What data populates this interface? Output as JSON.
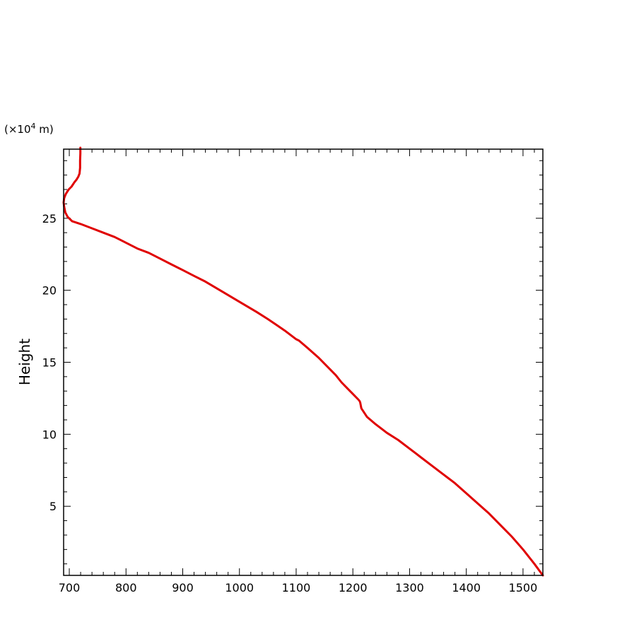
{
  "chart_data": {
    "type": "line",
    "title": "",
    "xlabel": "",
    "ylabel": "Height",
    "y_unit_prefix": "(×10",
    "y_unit_exp": "4",
    "y_unit_suffix": " m)",
    "xlim": [
      690,
      1535
    ],
    "ylim": [
      0.2,
      29.8
    ],
    "xticks": [
      700,
      800,
      900,
      1000,
      1100,
      1200,
      1300,
      1400,
      1500
    ],
    "yticks": [
      5,
      10,
      15,
      20,
      25
    ],
    "grid": false,
    "legend": "none",
    "line_color": "#e00000",
    "series": [
      {
        "x": [
          1535,
          1520,
          1500,
          1480,
          1460,
          1440,
          1420,
          1400,
          1380,
          1360,
          1340,
          1320,
          1310,
          1300,
          1280,
          1260,
          1240,
          1225,
          1215,
          1214,
          1213,
          1212,
          1210,
          1200,
          1190,
          1180,
          1170,
          1160,
          1140,
          1120,
          1105,
          1100,
          1080,
          1065,
          1050,
          1030,
          1000,
          970,
          940,
          920,
          900,
          880,
          860,
          840,
          820,
          800,
          790,
          780,
          760,
          740,
          720,
          705,
          697,
          693,
          691,
          690,
          691,
          694,
          699,
          704,
          709,
          713,
          716,
          718,
          719,
          719,
          719.5,
          719.5,
          719.5,
          719.5
        ],
        "y": [
          0.2,
          1.0,
          2.0,
          2.9,
          3.7,
          4.5,
          5.2,
          5.9,
          6.6,
          7.2,
          7.8,
          8.4,
          8.7,
          9.0,
          9.6,
          10.1,
          10.7,
          11.2,
          11.8,
          12.0,
          12.2,
          12.3,
          12.4,
          12.8,
          13.2,
          13.6,
          14.1,
          14.5,
          15.3,
          16.0,
          16.5,
          16.6,
          17.2,
          17.6,
          18.0,
          18.5,
          19.2,
          19.9,
          20.6,
          21.0,
          21.4,
          21.8,
          22.2,
          22.6,
          22.9,
          23.3,
          23.5,
          23.7,
          24.0,
          24.3,
          24.6,
          24.8,
          25.1,
          25.4,
          25.8,
          26.1,
          26.4,
          26.7,
          27.0,
          27.2,
          27.5,
          27.7,
          27.9,
          28.1,
          28.5,
          29.0,
          29.5,
          29.8,
          29.9,
          29.9
        ]
      }
    ]
  }
}
